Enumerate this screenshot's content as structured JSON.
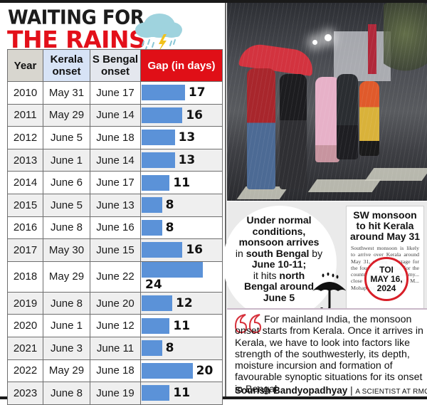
{
  "header": {
    "title_line1": "WAITING FOR",
    "title_line2": "THE RAINS",
    "icon": "rain-cloud-lightning-icon"
  },
  "table": {
    "columns": [
      "Year",
      "Kerala onset",
      "S Bengal onset",
      "Gap (in days)"
    ],
    "col_year": "Year",
    "col_kerala_1": "Kerala",
    "col_kerala_2": "onset",
    "col_bengal_1": "S Bengal",
    "col_bengal_2": "onset",
    "col_gap": "Gap (in days)",
    "rows": [
      {
        "year": "2010",
        "kerala": "May 31",
        "bengal": "June 17",
        "gap": "17"
      },
      {
        "year": "2011",
        "kerala": "May 29",
        "bengal": "June 14",
        "gap": "16"
      },
      {
        "year": "2012",
        "kerala": "June 5",
        "bengal": "June 18",
        "gap": "13"
      },
      {
        "year": "2013",
        "kerala": "June 1",
        "bengal": "June 14",
        "gap": "13"
      },
      {
        "year": "2014",
        "kerala": "June 6",
        "bengal": "June 17",
        "gap": "11"
      },
      {
        "year": "2015",
        "kerala": "June 5",
        "bengal": "June 13",
        "gap": "8"
      },
      {
        "year": "2016",
        "kerala": "June 8",
        "bengal": "June 16",
        "gap": "8"
      },
      {
        "year": "2017",
        "kerala": "May 30",
        "bengal": "June 15",
        "gap": "16"
      },
      {
        "year": "2018",
        "kerala": "May 29",
        "bengal": "June 22",
        "gap": "24"
      },
      {
        "year": "2019",
        "kerala": "June 8",
        "bengal": "June 20",
        "gap": "12"
      },
      {
        "year": "2020",
        "kerala": "June 1",
        "bengal": "June 12",
        "gap": "11"
      },
      {
        "year": "2021",
        "kerala": "June 3",
        "bengal": "June 11",
        "gap": "8"
      },
      {
        "year": "2022",
        "kerala": "May 29",
        "bengal": "June 18",
        "gap": "20"
      },
      {
        "year": "2023",
        "kerala": "June 8",
        "bengal": "June 19",
        "gap": "11"
      }
    ]
  },
  "colors": {
    "title_red": "#e3101a",
    "gap_header_red": "#e00f17",
    "bar_blue": "#5b92d8",
    "year_header": "#d8d6cf",
    "kerala_header": "#d7e3f6",
    "bengal_header": "#e4e7ee",
    "stamp_red": "#d81e28"
  },
  "photo": {
    "description": "People walking under umbrella in heavy rain at night on zebra crossing"
  },
  "callout": {
    "l1": "Under normal",
    "l2": "conditions,",
    "l3": "monsoon arrives",
    "l4a": "in ",
    "l4b": "south Bengal",
    "l4c": " by",
    "l5": "June 10-11;",
    "l6a": "it hits ",
    "l6b": "north",
    "l7": "Bengal around",
    "l8": "June 5",
    "icon": "umbrella-rain-icon"
  },
  "clipping": {
    "headline_1": "SW monsoon",
    "headline_2": "to hit Kerala",
    "headline_3": "around May 31",
    "body": "Southwest monsoon is likely to arrive over Kerala around May 31, setting the stage for the four-month crucial for the country's rain-fed economy... close to the ... IMD DG M... Mohapatra said.",
    "stamp_1": "TOI",
    "stamp_2": "MAY 16,",
    "stamp_3": "2024"
  },
  "quote": {
    "text": "For mainland India, the monsoon onset starts from Kerala. Once it arrives in Kerala, we have to look into factors like strength of the southwesterly, its depth, moisture incursion and formation of favourable synoptic situations for its onset in Bengal",
    "author": "Sourish Bandyopadhyay",
    "separator": "|",
    "role": "A SCIENTIST AT RMC",
    "icon": "quote-mark-icon"
  },
  "chart_data": {
    "type": "bar",
    "orientation": "horizontal",
    "title": "WAITING FOR THE RAINS",
    "categories": [
      "2010",
      "2011",
      "2012",
      "2013",
      "2014",
      "2015",
      "2016",
      "2017",
      "2018",
      "2019",
      "2020",
      "2021",
      "2022",
      "2023"
    ],
    "series": [
      {
        "name": "Gap (in days)",
        "values": [
          17,
          16,
          13,
          13,
          11,
          8,
          8,
          16,
          24,
          12,
          11,
          8,
          20,
          11
        ]
      }
    ],
    "table_columns": {
      "Kerala onset": [
        "May 31",
        "May 29",
        "June 5",
        "June 1",
        "June 6",
        "June 5",
        "June 8",
        "May 30",
        "May 29",
        "June 8",
        "June 1",
        "June 3",
        "May 29",
        "June 8"
      ],
      "S Bengal onset": [
        "June 17",
        "June 14",
        "June 18",
        "June 14",
        "June 17",
        "June 13",
        "June 16",
        "June 15",
        "June 22",
        "June 20",
        "June 12",
        "June 11",
        "June 18",
        "June 19"
      ]
    },
    "xlabel": "Gap (in days)",
    "ylabel": "Year",
    "data_labels": true,
    "grid": false
  }
}
